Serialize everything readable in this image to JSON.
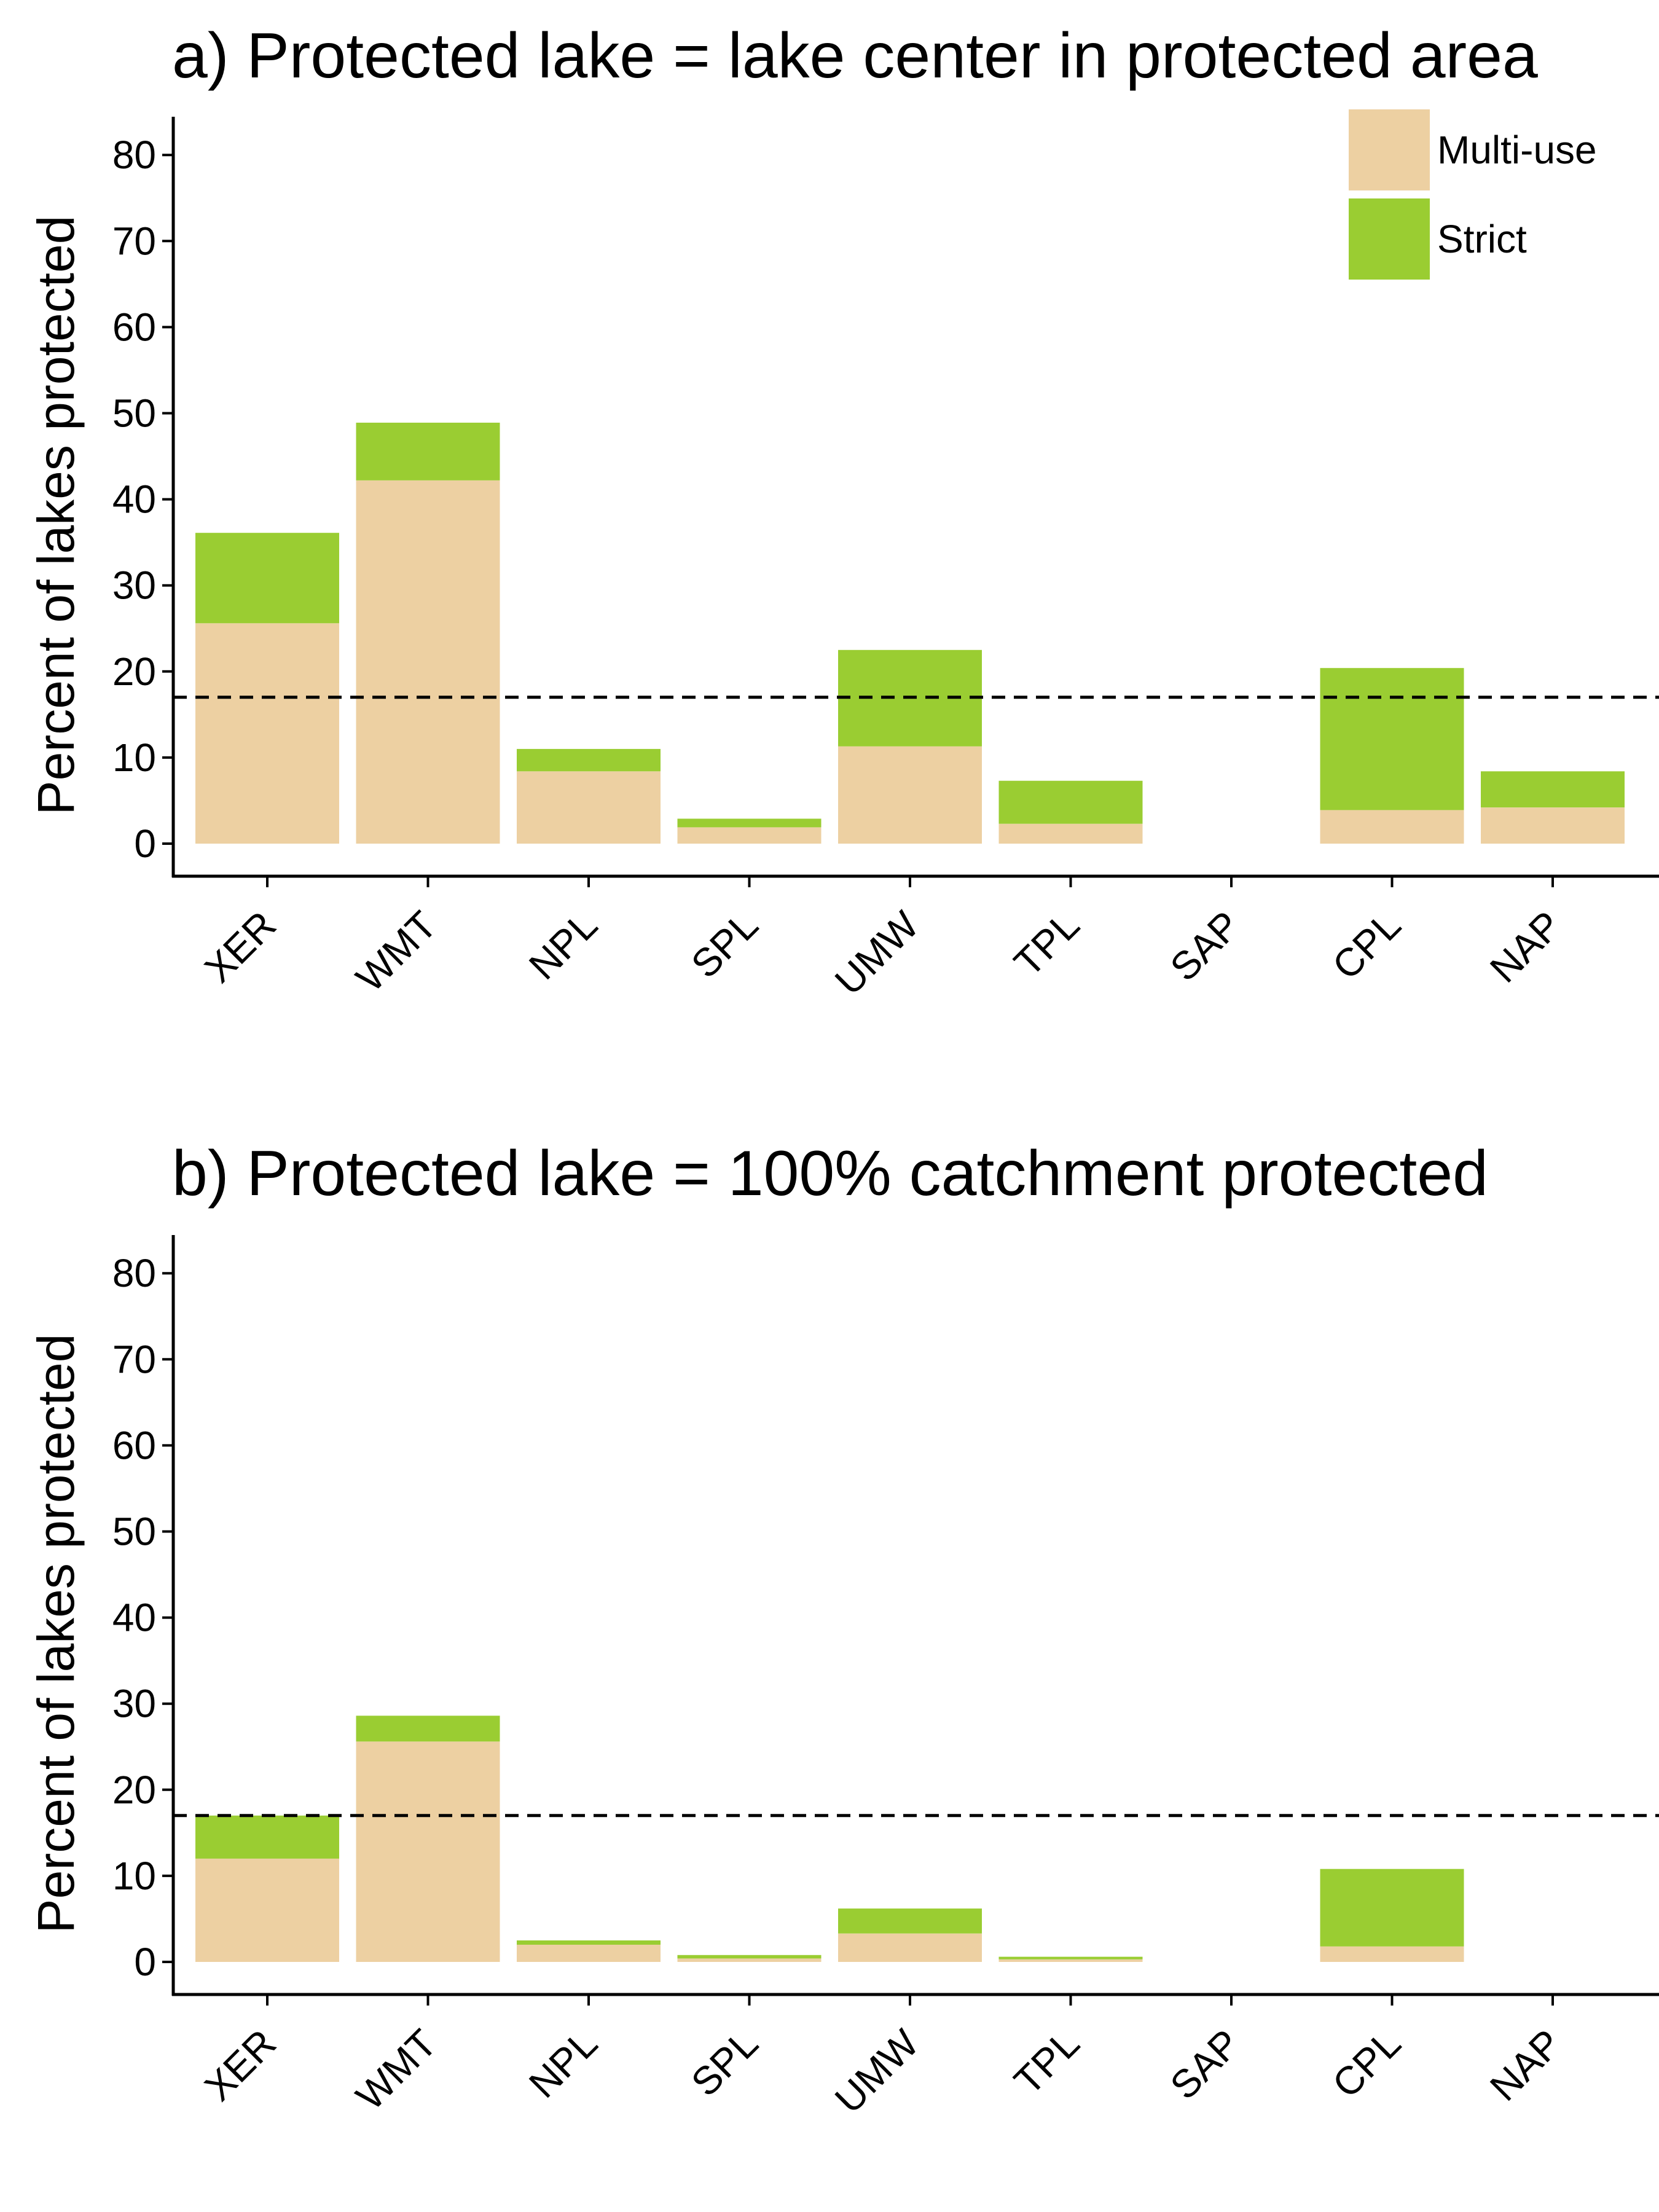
{
  "chart_data": [
    {
      "type": "bar",
      "stacked": true,
      "title": "a) Protected lake = lake center in protected area",
      "xlabel": "",
      "ylabel": "Percent of lakes protected",
      "ylim": [
        -3,
        84
      ],
      "yticks": [
        "0",
        "10",
        "20",
        "30",
        "40",
        "50",
        "60",
        "70",
        "80"
      ],
      "categories": [
        "XER",
        "WMT",
        "NPL",
        "SPL",
        "UMW",
        "TPL",
        "SAP",
        "CPL",
        "NAP"
      ],
      "series": [
        {
          "name": "Multi-use",
          "color": "#EDD0A2",
          "values": [
            25.6,
            42.2,
            8.4,
            1.9,
            11.3,
            2.3,
            0.0,
            3.9,
            4.2
          ]
        },
        {
          "name": "Strict",
          "color": "#9ACD32",
          "values": [
            10.5,
            6.7,
            2.6,
            1.0,
            11.2,
            5.0,
            0.0,
            16.5,
            4.2
          ]
        }
      ],
      "reference_line": {
        "y": 17,
        "style": "dashed"
      },
      "legend": {
        "position": "top-right",
        "entries": [
          "Multi-use",
          "Strict"
        ]
      },
      "grid": false
    },
    {
      "type": "bar",
      "stacked": true,
      "title": "b) Protected lake = 100% catchment protected",
      "xlabel": "",
      "ylabel": "Percent of lakes protected",
      "ylim": [
        -3,
        84
      ],
      "yticks": [
        "0",
        "10",
        "20",
        "30",
        "40",
        "50",
        "60",
        "70",
        "80"
      ],
      "categories": [
        "XER",
        "WMT",
        "NPL",
        "SPL",
        "UMW",
        "TPL",
        "SAP",
        "CPL",
        "NAP"
      ],
      "series": [
        {
          "name": "Multi-use",
          "color": "#EDD0A2",
          "values": [
            12.0,
            25.6,
            2.0,
            0.4,
            3.3,
            0.3,
            0.0,
            1.8,
            0.0
          ]
        },
        {
          "name": "Strict",
          "color": "#9ACD32",
          "values": [
            5.0,
            3.0,
            0.5,
            0.4,
            2.9,
            0.3,
            0.0,
            9.0,
            0.0
          ]
        }
      ],
      "reference_line": {
        "y": 17,
        "style": "dashed"
      },
      "grid": false
    }
  ]
}
